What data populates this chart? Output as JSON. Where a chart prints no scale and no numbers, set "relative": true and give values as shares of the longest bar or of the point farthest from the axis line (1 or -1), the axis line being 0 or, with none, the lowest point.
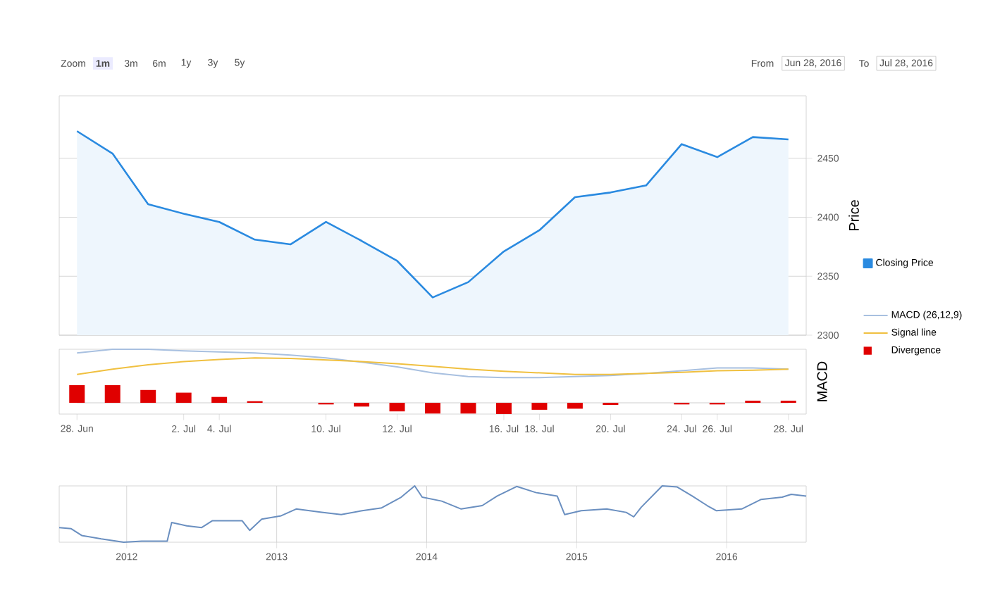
{
  "chart_data": [
    {
      "type": "area",
      "ylabel": "Price",
      "categories": [
        null,
        null,
        null,
        null,
        null,
        null,
        null,
        null,
        null,
        null,
        null,
        null,
        null,
        null,
        null,
        null,
        null,
        null,
        null,
        null,
        null
      ],
      "series": [
        {
          "name": "Closing Price",
          "color": "#2a8ae0",
          "values": [
            2473,
            2454,
            2411,
            2403,
            2396,
            2381,
            2377,
            2396,
            2380,
            2363,
            2332,
            2345,
            2371,
            2389,
            2417,
            2421,
            2427,
            2462,
            2451,
            2468,
            2466
          ]
        }
      ],
      "ylim": [
        2300,
        2503
      ],
      "yticks": [
        2300,
        2350,
        2400,
        2450
      ],
      "grid": "y",
      "legend": "right",
      "tick_labels": "y",
      "annotations": [
        "Zoom",
        "1m",
        "3m",
        "6m",
        "1y",
        "3y",
        "5y",
        "From",
        "Jun 28, 2016",
        "To",
        "Jul 28, 2016"
      ]
    },
    {
      "type": "line",
      "ylabel": "MACD",
      "relative": true,
      "categories": [
        "28. Jun",
        null,
        null,
        "2. Jul",
        "4. Jul",
        null,
        null,
        "10. Jul",
        null,
        "12. Jul",
        null,
        null,
        "16. Jul",
        "18. Jul",
        null,
        "20. Jul",
        null,
        "24. Jul",
        "26. Jul",
        null,
        "28. Jul"
      ],
      "series": [
        {
          "name": "MACD (26,12,9)",
          "color": "#a8c0e0",
          "values": [
            0.93,
            1,
            1,
            0.97,
            0.95,
            0.93,
            0.89,
            0.84,
            0.76,
            0.67,
            0.56,
            0.49,
            0.47,
            0.47,
            0.49,
            0.51,
            0.55,
            0.6,
            0.65,
            0.65,
            0.63
          ]
        },
        {
          "name": "Signal line",
          "color": "#f0c040",
          "values": [
            0.53,
            0.63,
            0.71,
            0.77,
            0.81,
            0.84,
            0.83,
            0.8,
            0.77,
            0.73,
            0.68,
            0.63,
            0.59,
            0.56,
            0.53,
            0.53,
            0.55,
            0.57,
            0.6,
            0.61,
            0.63
          ]
        },
        {
          "name": "Divergence",
          "type": "bar",
          "color": "#e00000",
          "values": [
            0.33,
            0.33,
            0.24,
            0.19,
            0.11,
            0.03,
            0,
            -0.03,
            -0.07,
            -0.16,
            -0.2,
            -0.2,
            -0.21,
            -0.13,
            -0.11,
            -0.04,
            0,
            -0.03,
            -0.03,
            0.04,
            0.04
          ]
        }
      ],
      "legend": "right"
    },
    {
      "type": "line",
      "relative": true,
      "x": [
        2011.55,
        2011.63,
        2011.7,
        2011.83,
        2011.98,
        2012.1,
        2012.27,
        2012.3,
        2012.4,
        2012.5,
        2012.57,
        2012.77,
        2012.82,
        2012.9,
        2013.03,
        2013.13,
        2013.3,
        2013.43,
        2013.57,
        2013.7,
        2013.83,
        2013.92,
        2013.97,
        2014.1,
        2014.23,
        2014.37,
        2014.47,
        2014.6,
        2014.73,
        2014.87,
        2014.92,
        2015.03,
        2015.2,
        2015.33,
        2015.38,
        2015.43,
        2015.57,
        2015.67,
        2015.77,
        2015.87,
        2015.93,
        2016.1,
        2016.23,
        2016.37,
        2016.43,
        2016.53
      ],
      "series": [
        {
          "color": "#6a8fc0",
          "values": [
            0.26,
            0.24,
            0.12,
            0.06,
            0,
            0.02,
            0.02,
            0.35,
            0.29,
            0.26,
            0.38,
            0.38,
            0.21,
            0.41,
            0.47,
            0.59,
            0.53,
            0.49,
            0.56,
            0.61,
            0.8,
            1,
            0.8,
            0.73,
            0.59,
            0.65,
            0.82,
            0.99,
            0.88,
            0.82,
            0.49,
            0.56,
            0.59,
            0.53,
            0.45,
            0.62,
            1,
            0.98,
            0.82,
            0.65,
            0.56,
            0.59,
            0.76,
            0.8,
            0.85,
            0.82
          ]
        }
      ],
      "xlim": [
        2011.55,
        2016.53
      ],
      "xticks": [
        2012,
        2013,
        2014,
        2015,
        2016
      ],
      "grid": "x",
      "tick_labels": "x"
    }
  ]
}
